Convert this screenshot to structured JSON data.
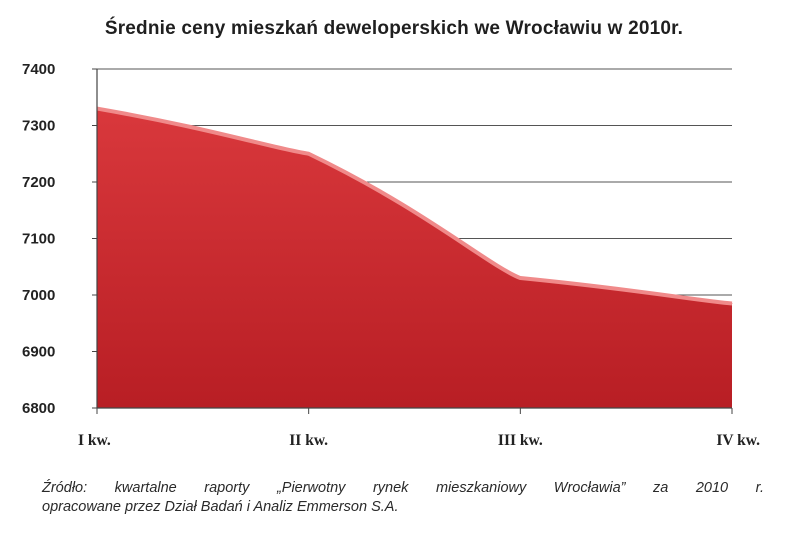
{
  "chart_data": {
    "type": "area",
    "title": "Średnie ceny mieszkań deweloperskich we Wrocławiu w 2010r.",
    "categories": [
      "I kw.",
      "II kw.",
      "III kw.",
      "IV kw."
    ],
    "values": [
      7330,
      7250,
      7030,
      6985
    ],
    "ylim": [
      6800,
      7400
    ],
    "yticks": [
      6800,
      6900,
      7000,
      7100,
      7200,
      7300,
      7400
    ],
    "grid": true,
    "xlabel": "",
    "ylabel": "",
    "colors": {
      "fill": "#c8262b",
      "top_edge": "#f08a8a",
      "grid": "#555555"
    }
  },
  "source": {
    "line1": "Źródło: kwartalne raporty „Pierwotny rynek mieszkaniowy Wrocławia” za 2010 r.",
    "line2": "opracowane przez Dział Badań i Analiz Emmerson S.A."
  }
}
